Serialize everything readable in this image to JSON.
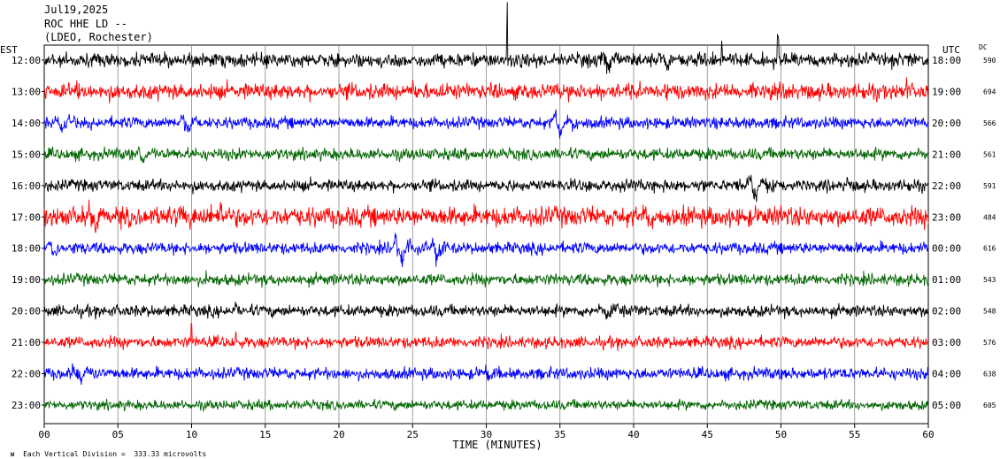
{
  "header": {
    "date": "Jul19,2025",
    "station": "ROC HHE LD --",
    "network": "(LDEO, Rochester)"
  },
  "left_tz": "EST",
  "right_tz": "UTC",
  "dc_label": "DC",
  "footer_note": "Each Vertical Division =  333.33 microvolts",
  "chart_data": {
    "type": "line",
    "title": "",
    "xlabel": "TIME (MINUTES)",
    "xlim": [
      0,
      60
    ],
    "x_ticks": [
      "00",
      "05",
      "10",
      "15",
      "20",
      "25",
      "30",
      "35",
      "40",
      "45",
      "50",
      "55",
      "60"
    ],
    "grid": "vertical every 5 minutes",
    "color_cycle": [
      "#000000",
      "#ff0000",
      "#0000ff",
      "#006400"
    ],
    "rows": [
      {
        "est": "12:00",
        "utc": "18:00",
        "dc": "590",
        "color": "#000000",
        "events": [
          {
            "t": 38,
            "amp": 10
          },
          {
            "t": 42,
            "amp": 6
          }
        ],
        "spikes": [
          {
            "t": 31.4,
            "amp": 60
          },
          {
            "t": 46,
            "amp": 24
          },
          {
            "t": 49.8,
            "amp": 26
          }
        ],
        "noise": 7
      },
      {
        "est": "13:00",
        "utc": "19:00",
        "dc": "694",
        "color": "#ff0000",
        "events": [],
        "spikes": [
          {
            "t": 25,
            "amp": 10
          },
          {
            "t": 58.5,
            "amp": 10
          }
        ],
        "noise": 8
      },
      {
        "est": "14:00",
        "utc": "20:00",
        "dc": "566",
        "color": "#0000ff",
        "events": [
          {
            "t": 1,
            "amp": 9
          },
          {
            "t": 9.5,
            "amp": 8
          },
          {
            "t": 34.8,
            "amp": 14
          }
        ],
        "spikes": [],
        "noise": 6
      },
      {
        "est": "15:00",
        "utc": "21:00",
        "dc": "561",
        "color": "#006400",
        "events": [
          {
            "t": 6.5,
            "amp": 9
          }
        ],
        "spikes": [],
        "noise": 6
      },
      {
        "est": "16:00",
        "utc": "22:00",
        "dc": "591",
        "color": "#000000",
        "events": [
          {
            "t": 48,
            "amp": 14
          }
        ],
        "spikes": [
          {
            "t": 9,
            "amp": 8
          },
          {
            "t": 54.5,
            "amp": 8
          }
        ],
        "noise": 6
      },
      {
        "est": "17:00",
        "utc": "23:00",
        "dc": "484",
        "color": "#ff0000",
        "events": [
          {
            "t": 3.2,
            "amp": 12
          },
          {
            "t": 41,
            "amp": 10
          }
        ],
        "spikes": [
          {
            "t": 12,
            "amp": 16
          },
          {
            "t": 50,
            "amp": 20
          }
        ],
        "noise": 10
      },
      {
        "est": "18:00",
        "utc": "00:00",
        "dc": "616",
        "color": "#0000ff",
        "events": [
          {
            "t": 24,
            "amp": 20
          },
          {
            "t": 26.5,
            "amp": 12
          },
          {
            "t": 0.5,
            "amp": 8
          }
        ],
        "spikes": [],
        "noise": 6
      },
      {
        "est": "19:00",
        "utc": "01:00",
        "dc": "543",
        "color": "#006400",
        "events": [],
        "spikes": [
          {
            "t": 11,
            "amp": 10
          }
        ],
        "noise": 6
      },
      {
        "est": "20:00",
        "utc": "02:00",
        "dc": "548",
        "color": "#000000",
        "events": [
          {
            "t": 38,
            "amp": 6
          }
        ],
        "spikes": [
          {
            "t": 13,
            "amp": 8
          }
        ],
        "noise": 6
      },
      {
        "est": "21:00",
        "utc": "03:00",
        "dc": "576",
        "color": "#ff0000",
        "events": [],
        "spikes": [
          {
            "t": 10,
            "amp": 18
          },
          {
            "t": 13,
            "amp": 12
          }
        ],
        "noise": 6
      },
      {
        "est": "22:00",
        "utc": "04:00",
        "dc": "638",
        "color": "#0000ff",
        "events": [
          {
            "t": 2.2,
            "amp": 14
          },
          {
            "t": 30,
            "amp": 8
          }
        ],
        "spikes": [],
        "noise": 6
      },
      {
        "est": "23:00",
        "utc": "05:00",
        "dc": "605",
        "color": "#006400",
        "events": [],
        "spikes": [],
        "noise": 5
      }
    ]
  }
}
